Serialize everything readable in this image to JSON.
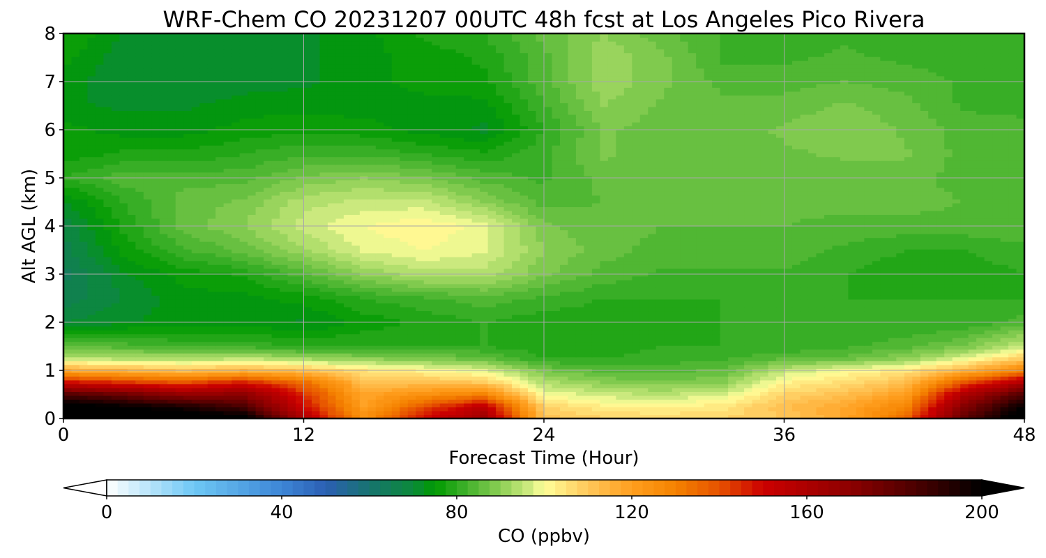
{
  "chart_data": {
    "type": "heatmap",
    "title": "WRF-Chem CO  20231207 00UTC 48h fcst at Los Angeles Pico Rivera",
    "xlabel": "Forecast Time (Hour)",
    "ylabel": "Alt AGL (km)",
    "xlim": [
      0,
      48
    ],
    "ylim": [
      0,
      8
    ],
    "x_ticks": [
      "0",
      "12",
      "24",
      "36",
      "48"
    ],
    "y_ticks": [
      "0",
      "1",
      "2",
      "3",
      "4",
      "5",
      "6",
      "7",
      "8"
    ],
    "grid": true,
    "x": [
      0,
      3,
      6,
      9,
      12,
      15,
      18,
      21,
      24,
      27,
      30,
      33,
      36,
      39,
      42,
      45,
      48
    ],
    "y": [
      0,
      0.25,
      0.5,
      0.75,
      1.0,
      1.25,
      1.5,
      2.0,
      2.5,
      3.0,
      3.5,
      4.0,
      4.5,
      5.0,
      5.5,
      6.0,
      6.5,
      7.0,
      7.5,
      8.0
    ],
    "z": [
      [
        215,
        212,
        208,
        205,
        160,
        125,
        150,
        165,
        112,
        108,
        107,
        108,
        110,
        118,
        135,
        180,
        210
      ],
      [
        205,
        200,
        195,
        185,
        150,
        120,
        140,
        155,
        108,
        103,
        102,
        104,
        112,
        118,
        128,
        172,
        200
      ],
      [
        185,
        178,
        168,
        170,
        145,
        118,
        125,
        130,
        100,
        96,
        95,
        97,
        108,
        112,
        120,
        160,
        185
      ],
      [
        150,
        145,
        140,
        148,
        135,
        112,
        112,
        110,
        94,
        90,
        88,
        90,
        102,
        106,
        112,
        140,
        160
      ],
      [
        118,
        115,
        112,
        115,
        112,
        105,
        102,
        98,
        88,
        84,
        84,
        86,
        95,
        100,
        104,
        115,
        130
      ],
      [
        95,
        94,
        93,
        95,
        92,
        90,
        88,
        86,
        80,
        80,
        81,
        82,
        85,
        86,
        90,
        98,
        110
      ],
      [
        85,
        84,
        82,
        82,
        80,
        80,
        80,
        80,
        78,
        79,
        80,
        80,
        80,
        82,
        84,
        88,
        96
      ],
      [
        70,
        72,
        74,
        74,
        72,
        76,
        78,
        80,
        78,
        78,
        78,
        80,
        80,
        80,
        80,
        80,
        84
      ],
      [
        66,
        70,
        74,
        74,
        76,
        80,
        82,
        84,
        82,
        80,
        80,
        80,
        80,
        80,
        80,
        80,
        80
      ],
      [
        64,
        72,
        76,
        78,
        84,
        90,
        94,
        94,
        88,
        84,
        82,
        82,
        82,
        80,
        78,
        78,
        80
      ],
      [
        66,
        76,
        82,
        86,
        92,
        98,
        100,
        98,
        90,
        86,
        84,
        84,
        84,
        82,
        80,
        80,
        82
      ],
      [
        68,
        78,
        86,
        90,
        96,
        100,
        102,
        99,
        88,
        86,
        85,
        85,
        85,
        84,
        84,
        84,
        84
      ],
      [
        72,
        80,
        86,
        88,
        94,
        96,
        96,
        90,
        84,
        85,
        85,
        85,
        86,
        86,
        86,
        85,
        84
      ],
      [
        80,
        84,
        84,
        84,
        88,
        90,
        88,
        84,
        82,
        86,
        86,
        86,
        86,
        86,
        86,
        84,
        84
      ],
      [
        76,
        78,
        78,
        80,
        82,
        82,
        80,
        78,
        82,
        88,
        86,
        86,
        87,
        88,
        88,
        84,
        84
      ],
      [
        76,
        74,
        74,
        76,
        77,
        76,
        74,
        72,
        80,
        88,
        86,
        86,
        88,
        90,
        87,
        84,
        83
      ],
      [
        73,
        72,
        72,
        74,
        74,
        74,
        74,
        74,
        82,
        90,
        87,
        86,
        86,
        88,
        86,
        82,
        82
      ],
      [
        74,
        70,
        70,
        71,
        72,
        74,
        76,
        77,
        84,
        92,
        88,
        84,
        84,
        85,
        84,
        82,
        82
      ],
      [
        76,
        71,
        70,
        71,
        72,
        74,
        76,
        78,
        84,
        92,
        88,
        82,
        82,
        83,
        82,
        81,
        80
      ],
      [
        78,
        72,
        72,
        72,
        72,
        74,
        78,
        80,
        86,
        90,
        86,
        82,
        80,
        82,
        80,
        80,
        80
      ]
    ],
    "colorbar": {
      "label": "CO  (ppbv)",
      "ticks": [
        "0",
        "40",
        "80",
        "120",
        "160",
        "200"
      ],
      "range": [
        0,
        200
      ],
      "extend": "both",
      "stops": [
        {
          "v": 0,
          "c": "#ffffff"
        },
        {
          "v": 20,
          "c": "#6ec8f5"
        },
        {
          "v": 40,
          "c": "#3d86d6"
        },
        {
          "v": 50,
          "c": "#2c5fb4"
        },
        {
          "v": 60,
          "c": "#17736f"
        },
        {
          "v": 70,
          "c": "#0b8a3a"
        },
        {
          "v": 75,
          "c": "#009a00"
        },
        {
          "v": 82,
          "c": "#3fb02a"
        },
        {
          "v": 90,
          "c": "#8ccf55"
        },
        {
          "v": 96,
          "c": "#c8e87c"
        },
        {
          "v": 100,
          "c": "#ffff9a"
        },
        {
          "v": 110,
          "c": "#ffc75a"
        },
        {
          "v": 120,
          "c": "#ff9e1e"
        },
        {
          "v": 130,
          "c": "#f58200"
        },
        {
          "v": 140,
          "c": "#e65200"
        },
        {
          "v": 150,
          "c": "#cc0000"
        },
        {
          "v": 170,
          "c": "#8c0000"
        },
        {
          "v": 185,
          "c": "#4a0000"
        },
        {
          "v": 200,
          "c": "#000000"
        }
      ]
    }
  }
}
